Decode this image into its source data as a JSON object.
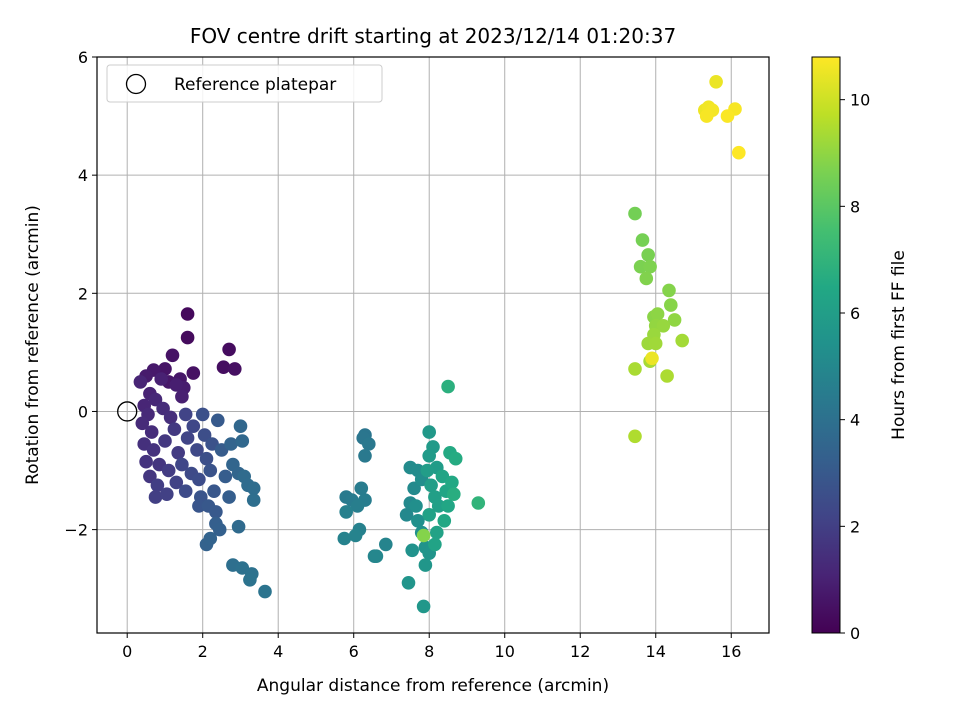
{
  "chart_data": {
    "type": "scatter",
    "title": "FOV centre drift starting at 2023/12/14 01:20:37",
    "xlabel": "Angular distance from reference (arcmin)",
    "ylabel": "Rotation from reference (arcmin)",
    "xlim": [
      -0.8,
      17
    ],
    "ylim": [
      -3.75,
      6
    ],
    "xticks": [
      0,
      2,
      4,
      6,
      8,
      10,
      12,
      14,
      16
    ],
    "yticks": [
      -2,
      0,
      2,
      4,
      6
    ],
    "grid": true,
    "legend": {
      "label": "Reference platepar",
      "placement": "top-left",
      "marker": "hollow-circle"
    },
    "reference_point": {
      "x": 0,
      "y": 0
    },
    "colorbar": {
      "label": "Hours from first FF file",
      "colormap": "viridis",
      "range": [
        0,
        10.8
      ],
      "ticks": [
        0,
        2,
        4,
        6,
        8,
        10
      ]
    },
    "point_fields": [
      "x",
      "y",
      "hours"
    ],
    "points": [
      [
        1.6,
        1.65,
        0.25
      ],
      [
        1.6,
        1.25,
        0.3
      ],
      [
        2.7,
        1.05,
        0.35
      ],
      [
        2.55,
        0.75,
        0.4
      ],
      [
        2.85,
        0.72,
        0.45
      ],
      [
        1.75,
        0.65,
        0.5
      ],
      [
        1.2,
        0.95,
        0.55
      ],
      [
        1.0,
        0.72,
        0.6
      ],
      [
        1.4,
        0.55,
        0.65
      ],
      [
        1.1,
        0.5,
        0.7
      ],
      [
        0.7,
        0.7,
        0.75
      ],
      [
        0.5,
        0.6,
        0.8
      ],
      [
        1.5,
        0.4,
        0.85
      ],
      [
        1.3,
        0.45,
        0.9
      ],
      [
        1.45,
        0.25,
        0.95
      ],
      [
        0.9,
        0.55,
        1.0
      ],
      [
        0.6,
        0.3,
        1.05
      ],
      [
        0.35,
        0.5,
        1.1
      ],
      [
        0.45,
        0.1,
        1.15
      ],
      [
        0.75,
        0.2,
        1.2
      ],
      [
        0.55,
        -0.05,
        1.25
      ],
      [
        0.4,
        -0.2,
        1.3
      ],
      [
        0.65,
        -0.35,
        1.35
      ],
      [
        0.95,
        0.05,
        1.4
      ],
      [
        1.15,
        -0.1,
        1.45
      ],
      [
        0.45,
        -0.55,
        1.5
      ],
      [
        0.7,
        -0.65,
        1.55
      ],
      [
        0.5,
        -0.85,
        1.6
      ],
      [
        0.85,
        -0.9,
        1.65
      ],
      [
        0.6,
        -1.1,
        1.7
      ],
      [
        1.0,
        -0.5,
        1.75
      ],
      [
        1.25,
        -0.3,
        1.8
      ],
      [
        1.35,
        -0.7,
        1.85
      ],
      [
        1.1,
        -1.0,
        1.9
      ],
      [
        0.8,
        -1.25,
        1.95
      ],
      [
        0.75,
        -1.45,
        2.0
      ],
      [
        1.05,
        -1.4,
        2.05
      ],
      [
        1.3,
        -1.2,
        2.1
      ],
      [
        1.55,
        -0.05,
        2.15
      ],
      [
        1.6,
        -0.45,
        2.2
      ],
      [
        1.45,
        -0.9,
        2.25
      ],
      [
        1.75,
        -0.25,
        2.3
      ],
      [
        1.85,
        -0.65,
        2.35
      ],
      [
        1.7,
        -1.05,
        2.4
      ],
      [
        1.55,
        -1.35,
        2.45
      ],
      [
        1.9,
        -1.15,
        2.5
      ],
      [
        2.05,
        -0.4,
        2.55
      ],
      [
        2.1,
        -0.8,
        2.6
      ],
      [
        2.0,
        -0.05,
        2.65
      ],
      [
        2.25,
        -0.55,
        2.7
      ],
      [
        2.2,
        -1.0,
        2.75
      ],
      [
        1.95,
        -1.45,
        2.8
      ],
      [
        1.9,
        -1.6,
        2.85
      ],
      [
        2.3,
        -1.35,
        2.9
      ],
      [
        2.15,
        -1.6,
        2.95
      ],
      [
        2.35,
        -1.7,
        3.0
      ],
      [
        2.4,
        -0.15,
        3.05
      ],
      [
        2.5,
        -0.65,
        3.1
      ],
      [
        2.6,
        -1.1,
        3.15
      ],
      [
        2.7,
        -1.45,
        3.2
      ],
      [
        2.35,
        -1.9,
        3.25
      ],
      [
        2.45,
        -2.0,
        3.3
      ],
      [
        2.1,
        -2.25,
        3.35
      ],
      [
        2.2,
        -2.15,
        3.4
      ],
      [
        2.75,
        -0.55,
        3.45
      ],
      [
        2.8,
        -0.9,
        3.5
      ],
      [
        2.95,
        -1.05,
        3.55
      ],
      [
        3.0,
        -0.25,
        3.6
      ],
      [
        3.05,
        -0.5,
        3.65
      ],
      [
        2.95,
        -1.95,
        3.7
      ],
      [
        3.1,
        -1.1,
        3.75
      ],
      [
        3.2,
        -1.25,
        3.8
      ],
      [
        3.35,
        -1.3,
        3.85
      ],
      [
        3.35,
        -1.5,
        3.9
      ],
      [
        2.8,
        -2.6,
        3.95
      ],
      [
        3.05,
        -2.65,
        4.0
      ],
      [
        3.3,
        -2.75,
        4.05
      ],
      [
        3.25,
        -2.85,
        4.1
      ],
      [
        3.65,
        -3.05,
        4.15
      ],
      [
        6.3,
        -0.4,
        4.2
      ],
      [
        6.25,
        -0.45,
        4.25
      ],
      [
        6.4,
        -0.55,
        4.3
      ],
      [
        6.3,
        -0.75,
        4.35
      ],
      [
        5.8,
        -1.45,
        4.4
      ],
      [
        5.95,
        -1.5,
        4.45
      ],
      [
        6.2,
        -1.3,
        4.5
      ],
      [
        6.3,
        -1.5,
        4.55
      ],
      [
        6.1,
        -1.6,
        4.6
      ],
      [
        5.8,
        -1.7,
        4.65
      ],
      [
        6.15,
        -2.0,
        4.7
      ],
      [
        5.75,
        -2.15,
        4.75
      ],
      [
        6.05,
        -2.1,
        4.8
      ],
      [
        6.85,
        -2.25,
        4.85
      ],
      [
        6.55,
        -2.45,
        4.9
      ],
      [
        6.6,
        -2.45,
        4.95
      ],
      [
        7.4,
        -1.75,
        5.0
      ],
      [
        7.5,
        -1.55,
        5.05
      ],
      [
        7.6,
        -1.3,
        5.1
      ],
      [
        7.5,
        -0.95,
        5.15
      ],
      [
        7.7,
        -1.0,
        5.2
      ],
      [
        7.8,
        -1.15,
        5.25
      ],
      [
        7.65,
        -1.6,
        5.3
      ],
      [
        7.7,
        -1.85,
        5.35
      ],
      [
        7.8,
        -2.05,
        5.4
      ],
      [
        7.55,
        -2.35,
        5.45
      ],
      [
        7.9,
        -2.3,
        5.5
      ],
      [
        8.0,
        -2.4,
        5.55
      ],
      [
        7.45,
        -2.9,
        5.6
      ],
      [
        7.9,
        -2.6,
        5.65
      ],
      [
        7.85,
        -3.3,
        5.7
      ],
      [
        8.0,
        -0.35,
        5.75
      ],
      [
        8.1,
        -0.6,
        5.8
      ],
      [
        8.0,
        -0.75,
        5.85
      ],
      [
        8.2,
        -0.95,
        5.9
      ],
      [
        7.95,
        -1.0,
        5.95
      ],
      [
        8.05,
        -1.25,
        6.0
      ],
      [
        8.15,
        -1.45,
        6.05
      ],
      [
        8.25,
        -1.6,
        6.1
      ],
      [
        8.0,
        -1.75,
        6.15
      ],
      [
        8.2,
        -2.05,
        6.2
      ],
      [
        8.15,
        -2.25,
        6.25
      ],
      [
        8.35,
        -1.1,
        6.3
      ],
      [
        8.45,
        -1.35,
        6.35
      ],
      [
        8.5,
        -1.6,
        6.4
      ],
      [
        8.4,
        -1.85,
        6.45
      ],
      [
        8.6,
        -1.2,
        6.5
      ],
      [
        8.55,
        -0.7,
        6.55
      ],
      [
        8.7,
        -0.8,
        6.6
      ],
      [
        8.65,
        -1.4,
        6.7
      ],
      [
        8.5,
        0.42,
        6.8
      ],
      [
        9.3,
        -1.55,
        7.0
      ],
      [
        7.85,
        -2.1,
        8.8
      ],
      [
        13.45,
        3.35,
        8.5
      ],
      [
        13.65,
        2.9,
        8.55
      ],
      [
        13.8,
        2.65,
        8.6
      ],
      [
        13.6,
        2.45,
        8.65
      ],
      [
        13.85,
        2.45,
        8.7
      ],
      [
        13.75,
        2.25,
        8.75
      ],
      [
        14.35,
        2.05,
        8.8
      ],
      [
        14.4,
        1.8,
        8.85
      ],
      [
        13.95,
        1.6,
        8.9
      ],
      [
        14.05,
        1.65,
        8.95
      ],
      [
        14.5,
        1.55,
        9.0
      ],
      [
        14.0,
        1.45,
        9.05
      ],
      [
        14.2,
        1.45,
        9.1
      ],
      [
        13.95,
        1.3,
        9.15
      ],
      [
        13.8,
        1.15,
        9.2
      ],
      [
        14.0,
        1.15,
        9.25
      ],
      [
        14.7,
        1.2,
        9.3
      ],
      [
        13.85,
        0.85,
        9.35
      ],
      [
        13.45,
        0.72,
        9.4
      ],
      [
        14.3,
        0.6,
        9.45
      ],
      [
        13.45,
        -0.42,
        9.5
      ],
      [
        13.9,
        0.9,
        10.5
      ],
      [
        15.6,
        5.58,
        10.5
      ],
      [
        15.3,
        5.1,
        10.55
      ],
      [
        15.4,
        5.15,
        10.6
      ],
      [
        15.5,
        5.1,
        10.65
      ],
      [
        15.35,
        5.0,
        10.7
      ],
      [
        16.1,
        5.12,
        10.7
      ],
      [
        15.9,
        5.0,
        10.75
      ],
      [
        16.2,
        4.38,
        10.8
      ]
    ]
  }
}
